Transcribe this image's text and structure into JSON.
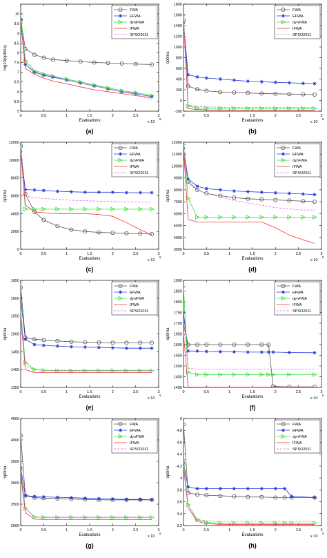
{
  "legend_colors": {
    "FWA": "#555555",
    "EFWA": "#2233dd",
    "dynFWA": "#33dd33",
    "IFWA": "#ee3333",
    "SPSO2011": "#dd66dd"
  },
  "chart_data": [
    {
      "type": "line",
      "panel_label": "(a)",
      "xlabel": "Evaluations",
      "ylabel": "log10(optima)",
      "x_exponent": "x 10",
      "x_exponent_power": "5",
      "xlim": [
        0,
        3
      ],
      "ylim": [
        5,
        10.5
      ],
      "xticks": [
        "0",
        "0.5",
        "1",
        "1.5",
        "2",
        "2.5",
        "3"
      ],
      "yticks": [
        "5",
        "5.5",
        "6",
        "6.5",
        "7",
        "7.5",
        "8",
        "8.5",
        "9",
        "9.5",
        "10"
      ],
      "x": [
        0,
        0.1,
        0.3,
        0.5,
        0.7,
        1.0,
        1.3,
        1.6,
        1.9,
        2.2,
        2.5,
        2.85
      ],
      "series": [
        {
          "name": "FWA",
          "marker": "circle",
          "values": [
            9.7,
            8.2,
            7.9,
            7.75,
            7.65,
            7.6,
            7.55,
            7.5,
            7.48,
            7.45,
            7.42,
            7.4
          ]
        },
        {
          "name": "EFWA",
          "marker": "star",
          "values": [
            9.7,
            7.4,
            7.0,
            6.85,
            6.75,
            6.6,
            6.45,
            6.3,
            6.15,
            6.0,
            5.9,
            5.75
          ]
        },
        {
          "name": "dynFWA",
          "marker": "triangle",
          "values": [
            10.0,
            7.6,
            7.05,
            6.9,
            6.8,
            6.65,
            6.5,
            6.35,
            6.2,
            6.05,
            5.95,
            5.8
          ]
        },
        {
          "name": "IFWA",
          "marker": "none",
          "values": [
            9.6,
            7.2,
            6.9,
            6.7,
            6.55,
            6.4,
            6.25,
            6.1,
            6.0,
            5.9,
            5.8,
            5.7
          ]
        },
        {
          "name": "SPSO2011",
          "marker": "none",
          "dash": true,
          "values": [
            9.6,
            7.6,
            7.1,
            6.95,
            6.8,
            6.6,
            6.45,
            6.3,
            6.15,
            6.0,
            5.85,
            5.6
          ]
        }
      ]
    },
    {
      "type": "line",
      "panel_label": "(b)",
      "xlabel": "Evaluations",
      "ylabel": "optima",
      "x_exponent": "x 10",
      "x_exponent_power": "5",
      "xlim": [
        0,
        3
      ],
      "ylim": [
        -200,
        1800
      ],
      "xticks": [
        "0",
        "0.5",
        "1",
        "1.5",
        "2",
        "2.5",
        "3"
      ],
      "yticks": [
        "-200",
        "0",
        "200",
        "400",
        "600",
        "800",
        "1000",
        "1200",
        "1400",
        "1600",
        "1800"
      ],
      "x": [
        0,
        0.1,
        0.3,
        0.5,
        0.8,
        1.1,
        1.4,
        1.7,
        2.0,
        2.3,
        2.6,
        2.85
      ],
      "series": [
        {
          "name": "FWA",
          "marker": "circle",
          "values": [
            1500,
            270,
            210,
            180,
            160,
            150,
            140,
            130,
            125,
            120,
            115,
            110
          ]
        },
        {
          "name": "EFWA",
          "marker": "star",
          "values": [
            1450,
            480,
            440,
            420,
            400,
            380,
            360,
            350,
            340,
            330,
            320,
            315
          ]
        },
        {
          "name": "dynFWA",
          "marker": "triangle",
          "values": [
            1600,
            -100,
            -140,
            -145,
            -148,
            -150,
            -150,
            -150,
            -150,
            -150,
            -150,
            -150
          ]
        },
        {
          "name": "IFWA",
          "marker": "none",
          "values": [
            1500,
            -150,
            -170,
            -175,
            -178,
            -180,
            -180,
            -180,
            -180,
            -180,
            -180,
            -180
          ]
        },
        {
          "name": "SPSO2011",
          "marker": "none",
          "dash": true,
          "values": [
            1500,
            -80,
            -110,
            -120,
            -125,
            -130,
            -130,
            -130,
            -130,
            -130,
            -130,
            -130
          ]
        }
      ]
    },
    {
      "type": "line",
      "panel_label": "(c)",
      "xlabel": "Evaluations",
      "ylabel": "optima",
      "x_exponent": "x 10",
      "x_exponent_power": "5",
      "xlim": [
        0,
        3
      ],
      "ylim": [
        0,
        12000
      ],
      "xticks": [
        "0",
        "0.5",
        "1",
        "1.5",
        "2",
        "2.5",
        "3"
      ],
      "yticks": [
        "0",
        "2000",
        "4000",
        "6000",
        "8000",
        "10000",
        "12000"
      ],
      "x": [
        0,
        0.1,
        0.3,
        0.5,
        0.8,
        1.1,
        1.4,
        1.7,
        2.0,
        2.3,
        2.6,
        2.85
      ],
      "series": [
        {
          "name": "FWA",
          "marker": "circle",
          "values": [
            11500,
            6200,
            4200,
            3300,
            2600,
            2200,
            2000,
            1900,
            1850,
            1800,
            1750,
            1700
          ]
        },
        {
          "name": "EFWA",
          "marker": "star",
          "values": [
            11000,
            6700,
            6650,
            6600,
            6500,
            6450,
            6400,
            6400,
            6400,
            6350,
            6350,
            6350
          ]
        },
        {
          "name": "dynFWA",
          "marker": "triangle",
          "values": [
            11700,
            4500,
            4500,
            4500,
            4500,
            4500,
            4500,
            4500,
            4500,
            4500,
            4500,
            4500
          ]
        },
        {
          "name": "IFWA",
          "marker": "none",
          "values": [
            11000,
            5000,
            4200,
            4100,
            4000,
            4000,
            4000,
            3900,
            3700,
            3000,
            2200,
            1600
          ]
        },
        {
          "name": "SPSO2011",
          "marker": "none",
          "dash": true,
          "values": [
            11500,
            6000,
            5800,
            5700,
            5600,
            5500,
            5450,
            5400,
            5350,
            5300,
            5300,
            5300
          ]
        }
      ]
    },
    {
      "type": "line",
      "panel_label": "(d)",
      "xlabel": "Evaluations",
      "ylabel": "optima",
      "x_exponent": "x 10",
      "x_exponent_power": "5",
      "xlim": [
        0,
        3
      ],
      "ylim": [
        3000,
        12000
      ],
      "xticks": [
        "0",
        "0.5",
        "1",
        "1.5",
        "2",
        "2.5",
        "3"
      ],
      "yticks": [
        "3000",
        "4000",
        "5000",
        "6000",
        "7000",
        "8000",
        "9000",
        "10000",
        "11000",
        "12000"
      ],
      "x": [
        0,
        0.1,
        0.3,
        0.5,
        0.8,
        1.1,
        1.4,
        1.7,
        2.0,
        2.3,
        2.6,
        2.85
      ],
      "series": [
        {
          "name": "FWA",
          "marker": "circle",
          "values": [
            11000,
            8700,
            8000,
            7700,
            7500,
            7350,
            7250,
            7200,
            7150,
            7100,
            7050,
            7000
          ]
        },
        {
          "name": "EFWA",
          "marker": "star",
          "values": [
            11500,
            8900,
            8300,
            8100,
            8000,
            7900,
            7850,
            7800,
            7750,
            7700,
            7650,
            7600
          ]
        },
        {
          "name": "dynFWA",
          "marker": "triangle",
          "values": [
            11800,
            7300,
            5700,
            5700,
            5700,
            5700,
            5700,
            5700,
            5700,
            5700,
            5700,
            5700
          ]
        },
        {
          "name": "IFWA",
          "marker": "none",
          "values": [
            11500,
            5500,
            5300,
            5300,
            5300,
            5300,
            5300,
            5300,
            4800,
            4200,
            3800,
            3500
          ]
        },
        {
          "name": "SPSO2011",
          "marker": "none",
          "dash": true,
          "values": [
            11500,
            8500,
            8000,
            7700,
            7400,
            7100,
            6900,
            6700,
            6500,
            6400,
            6300,
            6300
          ]
        }
      ]
    },
    {
      "type": "line",
      "panel_label": "(e)",
      "xlabel": "Evaluations",
      "ylabel": "optima",
      "x_exponent": "x 10",
      "x_exponent_power": "5",
      "xlim": [
        0,
        3
      ],
      "ylim": [
        1350,
        1650
      ],
      "xticks": [
        "0",
        "0.5",
        "1",
        "1.5",
        "2",
        "2.5",
        "3"
      ],
      "yticks": [
        "1350",
        "1400",
        "1450",
        "1500",
        "1550",
        "1600",
        "1650"
      ],
      "x": [
        0,
        0.1,
        0.3,
        0.5,
        0.8,
        1.1,
        1.4,
        1.7,
        2.0,
        2.3,
        2.6,
        2.85
      ],
      "series": [
        {
          "name": "FWA",
          "marker": "circle",
          "values": [
            1630,
            1490,
            1485,
            1483,
            1480,
            1478,
            1477,
            1476,
            1475,
            1475,
            1475,
            1475
          ]
        },
        {
          "name": "EFWA",
          "marker": "star",
          "values": [
            1600,
            1485,
            1470,
            1468,
            1466,
            1464,
            1463,
            1462,
            1461,
            1460,
            1460,
            1460
          ]
        },
        {
          "name": "dynFWA",
          "marker": "triangle",
          "values": [
            1560,
            1420,
            1400,
            1398,
            1397,
            1397,
            1397,
            1397,
            1397,
            1397,
            1397,
            1397
          ]
        },
        {
          "name": "IFWA",
          "marker": "none",
          "values": [
            1550,
            1400,
            1392,
            1392,
            1392,
            1392,
            1392,
            1392,
            1392,
            1392,
            1392,
            1392
          ]
        },
        {
          "name": "SPSO2011",
          "marker": "none",
          "dash": true,
          "values": [
            1560,
            1410,
            1400,
            1398,
            1398,
            1398,
            1398,
            1398,
            1398,
            1398,
            1398,
            1398
          ]
        }
      ]
    },
    {
      "type": "line",
      "panel_label": "(f)",
      "xlabel": "Evaluations",
      "ylabel": "optima",
      "x_exponent": "x 10",
      "x_exponent_power": "5",
      "xlim": [
        0,
        3
      ],
      "ylim": [
        1400,
        1900
      ],
      "xticks": [
        "0",
        "0.5",
        "1",
        "1.5",
        "2",
        "2.5",
        "3"
      ],
      "yticks": [
        "1400",
        "1450",
        "1500",
        "1550",
        "1600",
        "1650",
        "1700",
        "1750",
        "1800",
        "1850",
        "1900"
      ],
      "x": [
        0,
        0.1,
        0.3,
        0.5,
        0.8,
        1.1,
        1.4,
        1.7,
        1.85,
        1.95,
        2.3,
        2.85
      ],
      "series": [
        {
          "name": "FWA",
          "marker": "circle",
          "values": [
            1700,
            1600,
            1600,
            1600,
            1600,
            1600,
            1600,
            1600,
            1600,
            1405,
            1403,
            1403
          ]
        },
        {
          "name": "EFWA",
          "marker": "star",
          "values": [
            1750,
            1570,
            1570,
            1568,
            1567,
            1566,
            1565,
            1565,
            1565,
            1565,
            1563,
            1562
          ]
        },
        {
          "name": "dynFWA",
          "marker": "triangle",
          "values": [
            1870,
            1470,
            1460,
            1460,
            1460,
            1460,
            1460,
            1460,
            1460,
            1460,
            1460,
            1460
          ]
        },
        {
          "name": "IFWA",
          "marker": "none",
          "values": [
            1650,
            1402,
            1401,
            1401,
            1401,
            1401,
            1401,
            1401,
            1401,
            1401,
            1401,
            1401
          ]
        },
        {
          "name": "SPSO2011",
          "marker": "none",
          "dash": true,
          "values": [
            1700,
            1490,
            1485,
            1485,
            1485,
            1485,
            1485,
            1485,
            1485,
            1485,
            1485,
            1485
          ]
        }
      ]
    },
    {
      "type": "line",
      "panel_label": "(g)",
      "xlabel": "Evaluations",
      "ylabel": "optima",
      "x_exponent": "x 10",
      "x_exponent_power": "5",
      "xlim": [
        0,
        3
      ],
      "ylim": [
        2000,
        4500
      ],
      "xticks": [
        "0",
        "0.5",
        "1",
        "1.5",
        "2",
        "2.5",
        "3"
      ],
      "yticks": [
        "2000",
        "2500",
        "3000",
        "3500",
        "4000",
        "4500"
      ],
      "x": [
        0,
        0.1,
        0.3,
        0.5,
        0.8,
        1.1,
        1.4,
        1.7,
        2.0,
        2.3,
        2.6,
        2.85
      ],
      "series": [
        {
          "name": "FWA",
          "marker": "circle",
          "values": [
            4100,
            2700,
            2650,
            2640,
            2630,
            2620,
            2610,
            2600,
            2600,
            2600,
            2600,
            2600
          ]
        },
        {
          "name": "EFWA",
          "marker": "star",
          "values": [
            3350,
            2700,
            2680,
            2670,
            2660,
            2650,
            2640,
            2630,
            2620,
            2610,
            2610,
            2600
          ]
        },
        {
          "name": "dynFWA",
          "marker": "triangle",
          "values": [
            3300,
            2400,
            2200,
            2190,
            2190,
            2190,
            2190,
            2190,
            2190,
            2190,
            2190,
            2190
          ]
        },
        {
          "name": "IFWA",
          "marker": "none",
          "values": [
            3200,
            2300,
            2150,
            2140,
            2140,
            2140,
            2140,
            2140,
            2140,
            2140,
            2140,
            2140
          ]
        },
        {
          "name": "SPSO2011",
          "marker": "none",
          "dash": true,
          "values": [
            3300,
            2400,
            2200,
            2200,
            2200,
            2200,
            2200,
            2200,
            2200,
            2200,
            2200,
            2200
          ]
        }
      ]
    },
    {
      "type": "line",
      "panel_label": "(h)",
      "xlabel": "Evaluations",
      "ylabel": "optima",
      "x_exponent": "x 10",
      "x_exponent_power": "5",
      "xlim": [
        0,
        3
      ],
      "ylim": [
        3.2,
        5
      ],
      "xticks": [
        "0",
        "0.5",
        "1",
        "1.5",
        "2",
        "2.5",
        "3"
      ],
      "yticks": [
        "3.2",
        "3.4",
        "3.6",
        "3.8",
        "4",
        "4.2",
        "4.4",
        "4.6",
        "4.8",
        "5"
      ],
      "x": [
        0,
        0.1,
        0.3,
        0.5,
        0.8,
        1.1,
        1.4,
        1.7,
        2.0,
        2.2,
        2.35,
        2.85
      ],
      "series": [
        {
          "name": "FWA",
          "marker": "circle",
          "values": [
            4.9,
            3.75,
            3.72,
            3.71,
            3.7,
            3.69,
            3.68,
            3.68,
            3.67,
            3.67,
            3.67,
            3.67
          ]
        },
        {
          "name": "EFWA",
          "marker": "star",
          "values": [
            4.25,
            3.85,
            3.82,
            3.82,
            3.82,
            3.82,
            3.82,
            3.82,
            3.82,
            3.82,
            3.69,
            3.67
          ]
        },
        {
          "name": "dynFWA",
          "marker": "triangle",
          "values": [
            4.3,
            3.55,
            3.3,
            3.25,
            3.24,
            3.24,
            3.24,
            3.24,
            3.24,
            3.24,
            3.24,
            3.24
          ]
        },
        {
          "name": "IFWA",
          "marker": "none",
          "values": [
            4.2,
            3.5,
            3.27,
            3.23,
            3.22,
            3.22,
            3.22,
            3.22,
            3.22,
            3.22,
            3.22,
            3.22
          ]
        },
        {
          "name": "SPSO2011",
          "marker": "none",
          "dash": true,
          "values": [
            4.2,
            3.5,
            3.3,
            3.28,
            3.27,
            3.27,
            3.27,
            3.27,
            3.27,
            3.27,
            3.27,
            3.27
          ]
        }
      ]
    }
  ]
}
